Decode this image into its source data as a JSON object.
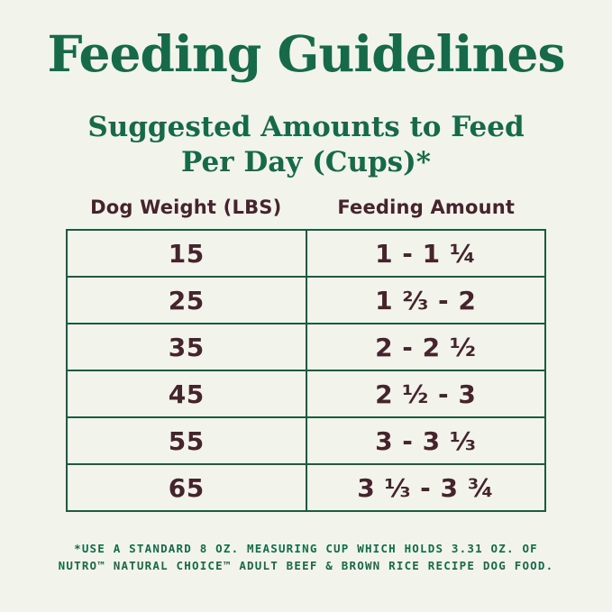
{
  "page": {
    "title": "Feeding Guidelines",
    "subtitle_line1": "Suggested Amounts to Feed",
    "subtitle_line2": "Per Day (Cups)*",
    "colors": {
      "background": "#F2F4EC",
      "heading_green": "#166A49",
      "table_text_maroon": "#45242D",
      "table_border_green": "#1A5C42"
    }
  },
  "table": {
    "columns": [
      "Dog Weight (LBS)",
      "Feeding Amount"
    ],
    "rows": [
      {
        "weight": "15",
        "amount": "1 - 1 ¼"
      },
      {
        "weight": "25",
        "amount": "1 ⅔ - 2"
      },
      {
        "weight": "35",
        "amount": "2 - 2 ½"
      },
      {
        "weight": "45",
        "amount": "2 ½ - 3"
      },
      {
        "weight": "55",
        "amount": "3 - 3 ⅓"
      },
      {
        "weight": "65",
        "amount": "3 ⅓ - 3 ¾"
      }
    ]
  },
  "footnote": {
    "line1": "*USE A STANDARD 8 OZ. MEASURING CUP WHICH HOLDS 3.31 OZ. OF",
    "line2": "NUTRO™ NATURAL CHOICE™ ADULT BEEF & BROWN RICE RECIPE DOG FOOD."
  },
  "chart_data": {
    "type": "table",
    "title": "Feeding Guidelines",
    "subtitle": "Suggested Amounts to Feed Per Day (Cups)*",
    "columns": [
      "Dog Weight (LBS)",
      "Feeding Amount"
    ],
    "rows": [
      [
        "15",
        "1 - 1 ¼"
      ],
      [
        "25",
        "1 ⅔ - 2"
      ],
      [
        "35",
        "2 - 2 ½"
      ],
      [
        "45",
        "2 ½ - 3"
      ],
      [
        "55",
        "3 - 3 ⅓"
      ],
      [
        "65",
        "3 ⅓ - 3 ¾"
      ]
    ],
    "dog_weights_lbs": [
      15,
      25,
      35,
      45,
      55,
      65
    ],
    "feeding_cups_min": [
      1,
      1.667,
      2,
      2.5,
      3,
      3.333
    ],
    "feeding_cups_max": [
      1.25,
      2,
      2.5,
      3,
      3.333,
      3.75
    ],
    "footnote": "*USE A STANDARD 8 OZ. MEASURING CUP WHICH HOLDS 3.31 OZ. OF NUTRO™ NATURAL CHOICE™ ADULT BEEF & BROWN RICE RECIPE DOG FOOD."
  }
}
